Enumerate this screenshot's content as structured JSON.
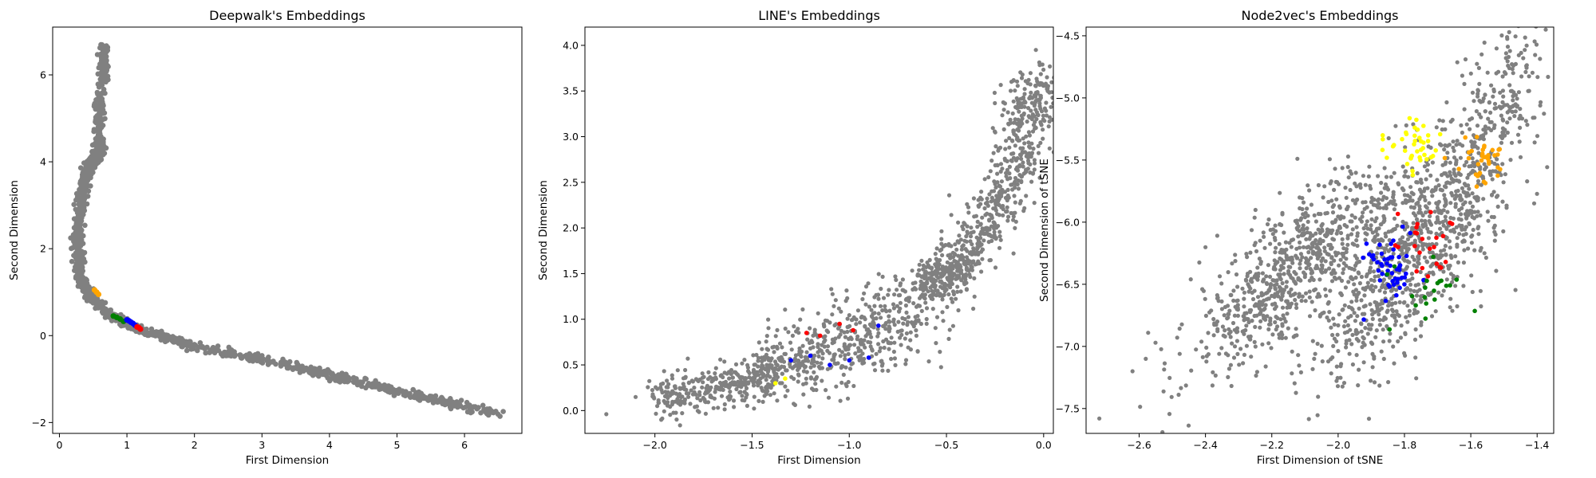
{
  "chart_data": [
    {
      "type": "scatter",
      "title": "Deepwalk's Embeddings",
      "xlabel": "First Dimension",
      "ylabel": "Second Dimension",
      "xlim": [
        -0.1,
        6.85
      ],
      "ylim": [
        -2.25,
        7.1
      ],
      "xticks": [
        0,
        1,
        2,
        3,
        4,
        5,
        6
      ],
      "yticks": [
        -2,
        0,
        2,
        4,
        6
      ],
      "grid": false,
      "background_series": {
        "color": "#808080",
        "path": [
          [
            0.68,
            6.7
          ],
          [
            0.65,
            6.2
          ],
          [
            0.6,
            5.5
          ],
          [
            0.58,
            4.8
          ],
          [
            0.6,
            4.3
          ],
          [
            0.55,
            4.1
          ],
          [
            0.5,
            4.0
          ],
          [
            0.45,
            3.9
          ],
          [
            0.4,
            3.7
          ],
          [
            0.35,
            3.3
          ],
          [
            0.3,
            2.8
          ],
          [
            0.28,
            2.3
          ],
          [
            0.27,
            2.0
          ],
          [
            0.3,
            1.5
          ],
          [
            0.38,
            1.1
          ],
          [
            0.5,
            0.85
          ],
          [
            0.7,
            0.55
          ],
          [
            0.9,
            0.35
          ],
          [
            1.1,
            0.2
          ],
          [
            1.4,
            0.05
          ],
          [
            1.7,
            -0.1
          ],
          [
            2.0,
            -0.25
          ],
          [
            2.5,
            -0.4
          ],
          [
            3.0,
            -0.55
          ],
          [
            3.5,
            -0.72
          ],
          [
            4.0,
            -0.9
          ],
          [
            4.5,
            -1.08
          ],
          [
            5.0,
            -1.28
          ],
          [
            5.5,
            -1.45
          ],
          [
            6.0,
            -1.62
          ],
          [
            6.52,
            -1.78
          ]
        ],
        "spread": 0.05
      },
      "highlight_series": [
        {
          "color": "#ffa500",
          "x": [
            0.52,
            0.55,
            0.58
          ],
          "y": [
            1.05,
            1.0,
            0.95
          ]
        },
        {
          "color": "#008000",
          "x": [
            0.8,
            0.85,
            0.9,
            0.95
          ],
          "y": [
            0.45,
            0.42,
            0.38,
            0.33
          ]
        },
        {
          "color": "#0000ff",
          "x": [
            1.0,
            1.03,
            1.06,
            1.09,
            1.12
          ],
          "y": [
            0.36,
            0.34,
            0.31,
            0.28,
            0.24
          ]
        },
        {
          "color": "#ff0000",
          "x": [
            1.15,
            1.18,
            1.2
          ],
          "y": [
            0.2,
            0.18,
            0.15
          ]
        }
      ]
    },
    {
      "type": "scatter",
      "title": "LINE's Embeddings",
      "xlabel": "First Dimension",
      "ylabel": "Second Dimension",
      "xlim": [
        -2.36,
        0.05
      ],
      "ylim": [
        -0.25,
        4.2
      ],
      "xticks": [
        -2.0,
        -1.5,
        -1.0,
        -0.5,
        0.0
      ],
      "xtick_labels": [
        "−2.0",
        "−1.5",
        "−1.0",
        "−0.5",
        "0.0"
      ],
      "yticks": [
        0.0,
        0.5,
        1.0,
        1.5,
        2.0,
        2.5,
        3.0,
        3.5,
        4.0
      ],
      "grid": false,
      "background_series": {
        "color": "#808080",
        "path": [
          [
            -2.0,
            0.15
          ],
          [
            -1.7,
            0.25
          ],
          [
            -1.5,
            0.35
          ],
          [
            -1.3,
            0.5
          ],
          [
            -1.1,
            0.65
          ],
          [
            -0.9,
            0.85
          ],
          [
            -0.7,
            1.1
          ],
          [
            -0.55,
            1.4
          ],
          [
            -0.45,
            1.6
          ],
          [
            -0.3,
            2.0
          ],
          [
            -0.15,
            2.6
          ],
          [
            -0.08,
            3.2
          ],
          [
            -0.05,
            3.6
          ]
        ],
        "spread": 0.12,
        "extra": {
          "x": [
            -2.25,
            -0.04,
            -0.02
          ],
          "y": [
            -0.04,
            3.95,
            2.55
          ]
        }
      },
      "highlight_series": [
        {
          "color": "#ff0000",
          "x": [
            -1.22,
            -1.15,
            -1.05,
            -0.98
          ],
          "y": [
            0.85,
            0.82,
            0.95,
            0.88
          ]
        },
        {
          "color": "#0000ff",
          "x": [
            -1.3,
            -1.2,
            -1.1,
            -1.0,
            -0.9,
            -0.85
          ],
          "y": [
            0.55,
            0.6,
            0.5,
            0.55,
            0.58,
            0.93
          ]
        },
        {
          "color": "#ffff00",
          "x": [
            -1.38,
            -1.33
          ],
          "y": [
            0.3,
            0.35
          ]
        }
      ]
    },
    {
      "type": "scatter",
      "title": "Node2vec's Embeddings",
      "xlabel": "First Dimension of tSNE",
      "ylabel": "Second Dimension of tSNE",
      "xlim": [
        -2.76,
        -1.35
      ],
      "ylim": [
        -7.7,
        -4.43
      ],
      "xticks": [
        -2.6,
        -2.4,
        -2.2,
        -2.0,
        -1.8,
        -1.6,
        -1.4
      ],
      "xtick_labels": [
        "−2.6",
        "−2.4",
        "−2.2",
        "−2.0",
        "−1.8",
        "−1.6",
        "−1.4"
      ],
      "yticks": [
        -7.5,
        -7.0,
        -6.5,
        -6.0,
        -5.5,
        -5.0,
        -4.5
      ],
      "ytick_labels": [
        "−7.5",
        "−7.0",
        "−6.5",
        "−6.0",
        "−5.5",
        "−5.0",
        "−4.5"
      ],
      "grid": false,
      "background_series": {
        "color": "#808080",
        "clusters": [
          {
            "cx": -2.15,
            "cy": -6.4,
            "sx": 0.15,
            "sy": 0.25,
            "n": 700
          },
          {
            "cx": -1.85,
            "cy": -6.4,
            "sx": 0.12,
            "sy": 0.35,
            "n": 600
          },
          {
            "cx": -1.65,
            "cy": -5.8,
            "sx": 0.1,
            "sy": 0.4,
            "n": 400
          },
          {
            "cx": -1.5,
            "cy": -5.0,
            "sx": 0.06,
            "sy": 0.25,
            "n": 150
          }
        ],
        "extra": {
          "x": [
            -2.72,
            -2.62,
            -2.58
          ],
          "y": [
            -7.58,
            -7.2,
            -7.1
          ]
        }
      },
      "highlight_series": [
        {
          "color": "#ffff00",
          "cx": -1.77,
          "cy": -5.38,
          "sx": 0.04,
          "sy": 0.1,
          "n": 40
        },
        {
          "color": "#ffa500",
          "cx": -1.57,
          "cy": -5.5,
          "sx": 0.03,
          "sy": 0.12,
          "n": 35
        },
        {
          "color": "#0000ff",
          "cx": -1.85,
          "cy": -6.35,
          "sx": 0.04,
          "sy": 0.15,
          "n": 50
        },
        {
          "color": "#ff0000",
          "cx": -1.75,
          "cy": -6.15,
          "sx": 0.05,
          "sy": 0.15,
          "n": 25
        },
        {
          "color": "#008000",
          "cx": -1.72,
          "cy": -6.55,
          "sx": 0.05,
          "sy": 0.15,
          "n": 20
        }
      ]
    }
  ]
}
